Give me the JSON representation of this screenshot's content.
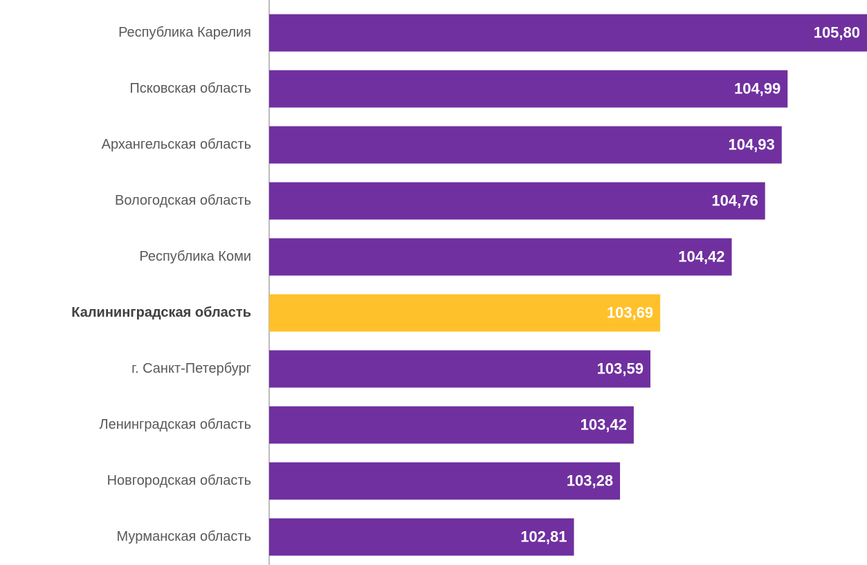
{
  "chart_data": {
    "type": "barh",
    "categories": [
      "Республика Карелия",
      "Псковская область",
      "Архангельская область",
      "Вологодская область",
      "Республика Коми",
      "Калининградская область",
      "г. Санкт-Петербург",
      "Ленинградская область",
      "Новгородская область",
      "Мурманская область"
    ],
    "values": [
      105.8,
      104.99,
      104.93,
      104.76,
      104.42,
      103.69,
      103.59,
      103.42,
      103.28,
      102.81
    ],
    "value_labels": [
      "105,80",
      "104,99",
      "104,93",
      "104,76",
      "104,42",
      "103,69",
      "103,59",
      "103,42",
      "103,28",
      "102,81"
    ],
    "colors": [
      "#7030a0",
      "#7030a0",
      "#7030a0",
      "#7030a0",
      "#7030a0",
      "#ffc12b",
      "#7030a0",
      "#7030a0",
      "#7030a0",
      "#7030a0"
    ],
    "highlight": 5,
    "xlim": [
      99.7,
      105.8
    ]
  }
}
